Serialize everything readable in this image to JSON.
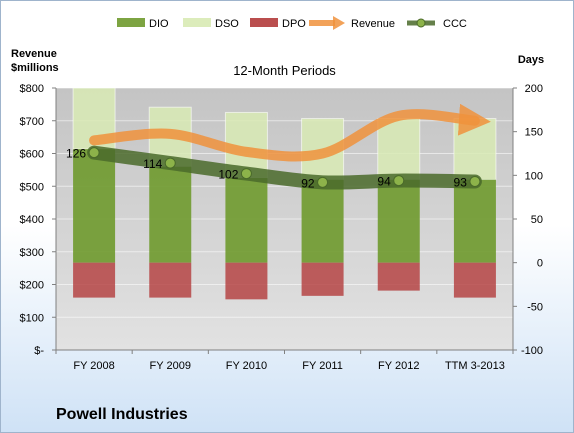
{
  "chart_data": {
    "type": "bar",
    "title": "12-Month Periods",
    "categories": [
      "FY 2008",
      "FY 2009",
      "FY 2010",
      "FY 2011",
      "FY 2012",
      "TTM 3-2013"
    ],
    "left_axis": {
      "label_lines": [
        "Revenue",
        "$millions"
      ],
      "ticks": [
        "$-",
        "$100",
        "$200",
        "$300",
        "$400",
        "$500",
        "$600",
        "$700",
        "$800"
      ],
      "range": [
        0,
        800
      ]
    },
    "right_axis": {
      "label": "Days",
      "ticks": [
        "-100",
        "-50",
        "0",
        "50",
        "100",
        "150",
        "200"
      ],
      "range": [
        -100,
        200
      ]
    },
    "series": [
      {
        "name": "DIO",
        "axis": "days",
        "values": [
          130,
          110,
          97,
          95,
          95,
          95
        ]
      },
      {
        "name": "DSO",
        "axis": "days",
        "values": [
          70,
          68,
          75,
          70,
          70,
          70
        ]
      },
      {
        "name": "DPO",
        "axis": "days",
        "values": [
          -40,
          -40,
          -42,
          -38,
          -32,
          -40
        ]
      },
      {
        "name": "Revenue",
        "axis": "revenue",
        "values": [
          640,
          660,
          605,
          600,
          715,
          700
        ]
      },
      {
        "name": "CCC",
        "axis": "days",
        "values": [
          126,
          114,
          102,
          92,
          94,
          93
        ]
      }
    ],
    "ccc_labels": [
      "126",
      "114",
      "102",
      "92",
      "94",
      "93"
    ],
    "legend_position": "top",
    "colors": {
      "DIO": "#6f9a2e",
      "DSO": "#d8eab4",
      "DPO": "#b33b3b",
      "Revenue": "#f0923c",
      "CCC": "#4a6a2a"
    }
  },
  "footer": {
    "company": "Powell Industries"
  }
}
